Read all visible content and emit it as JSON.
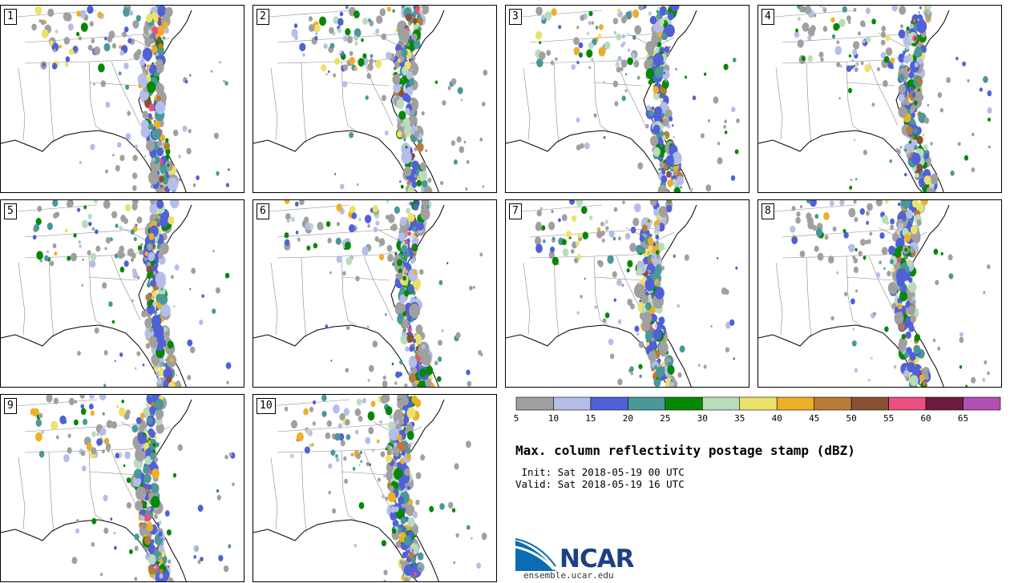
{
  "panels": [
    "1",
    "2",
    "3",
    "4",
    "5",
    "6",
    "7",
    "8",
    "9",
    "10"
  ],
  "colorbar": {
    "colors": [
      "#a0a0a0",
      "#b4bee8",
      "#5060d8",
      "#4a9898",
      "#068806",
      "#b8dcbc",
      "#ece26a",
      "#ecb028",
      "#b87c36",
      "#8a5034",
      "#ec5080",
      "#6c1c3c",
      "#b050b0"
    ],
    "ticks": [
      "5",
      "10",
      "15",
      "20",
      "25",
      "30",
      "35",
      "40",
      "45",
      "50",
      "55",
      "60",
      "65"
    ]
  },
  "title": "Max. column reflectivity postage stamp (dBZ)",
  "init": " Init: Sat 2018-05-19 00 UTC",
  "valid": "Valid: Sat 2018-05-19 16 UTC",
  "logo_text": "NCAR",
  "url": "ensemble.ucar.edu"
}
